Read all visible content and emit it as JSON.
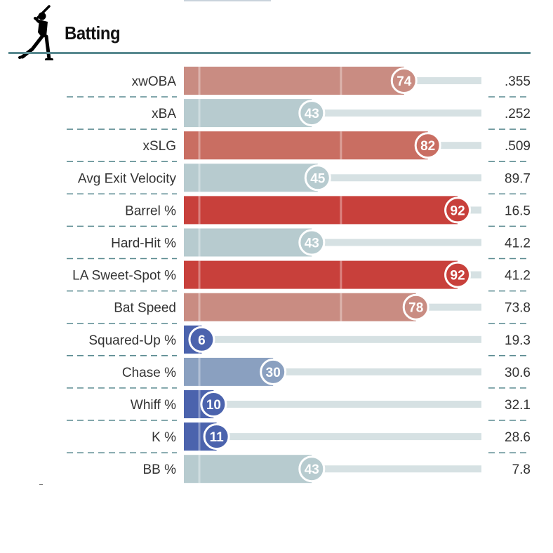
{
  "section": {
    "title": "Batting",
    "icon": "batter-silhouette-icon"
  },
  "colors": {
    "header_rule": "#5a8a90",
    "track": "#d6e1e3",
    "separator": "#5a8a90",
    "high_strong": "#c8403b",
    "high_medium": "#c96e62",
    "high_light": "#c98c82",
    "neutral": "#b7cbcf",
    "low_light": "#8aa0c0",
    "low_strong": "#4b63ad"
  },
  "chart_data": {
    "type": "bar",
    "orientation": "horizontal",
    "xlim": [
      0,
      100
    ],
    "categories": [
      "xwOBA",
      "xBA",
      "xSLG",
      "Avg Exit Velocity",
      "Barrel %",
      "Hard-Hit %",
      "LA Sweet-Spot %",
      "Bat Speed",
      "Squared-Up %",
      "Chase %",
      "Whiff %",
      "K %",
      "BB %"
    ],
    "percentiles": [
      74,
      43,
      82,
      45,
      92,
      43,
      92,
      78,
      6,
      30,
      10,
      11,
      43
    ],
    "values": [
      ".355",
      ".252",
      ".509",
      "89.7",
      "16.5",
      "41.2",
      "41.2",
      "73.8",
      "19.3",
      "30.6",
      "32.1",
      "28.6",
      "7.8"
    ]
  }
}
